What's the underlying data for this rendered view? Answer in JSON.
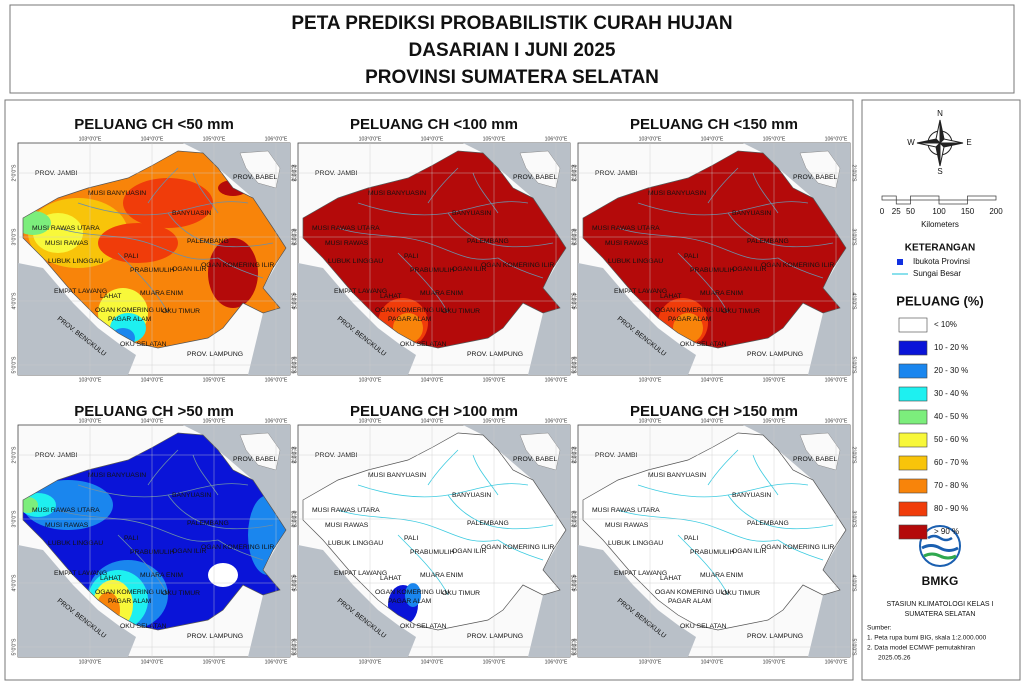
{
  "header": {
    "lines": [
      "PETA PREDIKSI PROBABILISTIK CURAH HUJAN",
      "DASARIAN I JUNI 2025",
      "PROVINSI SUMATERA SELATAN"
    ]
  },
  "panels": [
    {
      "title": "PELUANG CH <50 mm"
    },
    {
      "title": "PELUANG CH <100 mm"
    },
    {
      "title": "PELUANG CH <150 mm"
    },
    {
      "title": "PELUANG CH >50 mm"
    },
    {
      "title": "PELUANG CH >100 mm"
    },
    {
      "title": "PELUANG CH >150 mm"
    }
  ],
  "map": {
    "lon_ticks": [
      "103°0'0\"E",
      "104°0'0\"E",
      "105°0'0\"E",
      "106°0'0\"E"
    ],
    "lat_ticks": [
      "2°0'0\"S",
      "3°0'0\"S",
      "4°0'0\"S",
      "5°0'0\"S"
    ],
    "labels": [
      "PROV. JAMBI",
      "PROV. BABEL",
      "MUSI BANYUASIN",
      "BANYUASIN",
      "MUSI RAWAS UTARA",
      "PALEMBANG",
      "MUSI RAWAS",
      "PALI",
      "LUBUK LINGGAU",
      "OGAN ILIR",
      "OGAN KOMERING ILIR",
      "PRABUMULIH",
      "EMPAT LAWANG",
      "MUARA ENIM",
      "LAHAT",
      "OGAN KOMERING ULU",
      "OKU TIMUR",
      "PAGAR ALAM",
      "OKU SELATAN",
      "PROV. LAMPUNG",
      "PROV. BENGKULU"
    ]
  },
  "legend": {
    "compass": {
      "n": "N",
      "e": "E",
      "s": "S",
      "w": "W"
    },
    "scale": {
      "ticks": [
        0,
        25,
        50,
        100,
        150,
        200
      ],
      "unit": "Kilometers"
    },
    "keterangan": {
      "title": "KETERANGAN",
      "items": [
        "Ibukota Provinsi",
        "Sungai Besar"
      ]
    },
    "peluang": {
      "title": "PELUANG (%)",
      "classes": [
        {
          "label": "< 10%",
          "color": "#ffffff"
        },
        {
          "label": "10 - 20 %",
          "color": "#0a14d8"
        },
        {
          "label": "20 - 30 %",
          "color": "#1a86ee"
        },
        {
          "label": "30 - 40 %",
          "color": "#1ef0f0"
        },
        {
          "label": "40 - 50 %",
          "color": "#7cee7c"
        },
        {
          "label": "50 - 60 %",
          "color": "#f8f83a"
        },
        {
          "label": "60 - 70 %",
          "color": "#f8c40a"
        },
        {
          "label": "70 - 80 %",
          "color": "#f8840a"
        },
        {
          "label": "80 - 90 %",
          "color": "#f03c0a"
        },
        {
          "label": "> 90 %",
          "color": "#b40a0a"
        }
      ]
    },
    "agency": "BMKG",
    "station": [
      "STASIUN KLIMATOLOGI KELAS I",
      "SUMATERA SELATAN"
    ],
    "sources": [
      "Sumber:",
      "1. Peta rupa bumi BIG, skala 1:2.000.000",
      "2. Data model ECMWF pemutakhiran",
      "2025.05.26"
    ]
  }
}
